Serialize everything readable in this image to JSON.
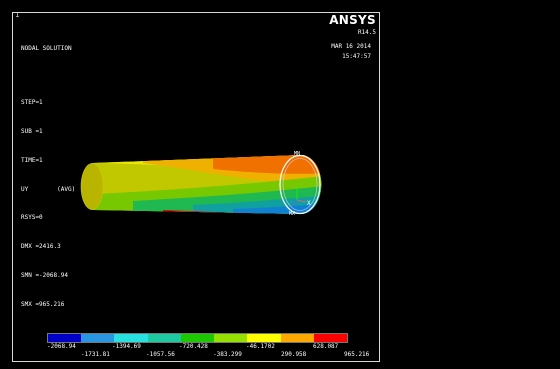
{
  "window": {
    "number": "1"
  },
  "header": {
    "title": "NODAL SOLUTION",
    "lines": [
      "STEP=1",
      "SUB =1",
      "TIME=1",
      "UY        (AVG)",
      "RSYS=0",
      "DMX =2416.3",
      "SMN =-2068.94",
      "SMX =965.216"
    ]
  },
  "brand": {
    "logo": "ANSYS",
    "version": "R14.5",
    "date": "MAR 16 2014",
    "time": "15:47:57"
  },
  "markers": {
    "min": "MN",
    "max": "MX"
  },
  "legend": {
    "colors": [
      "#0000c8",
      "#2a95e0",
      "#29e0e0",
      "#1ec8a0",
      "#1ec800",
      "#96e000",
      "#ffff00",
      "#ffa800",
      "#ff0000"
    ],
    "top_labels": [
      "-2068.94",
      "-1394.69",
      "-720.428",
      "-46.1702",
      "628.087"
    ],
    "bottom_labels": [
      "-1731.81",
      "-1057.56",
      "-383.299",
      "290.958",
      "965.216"
    ]
  }
}
